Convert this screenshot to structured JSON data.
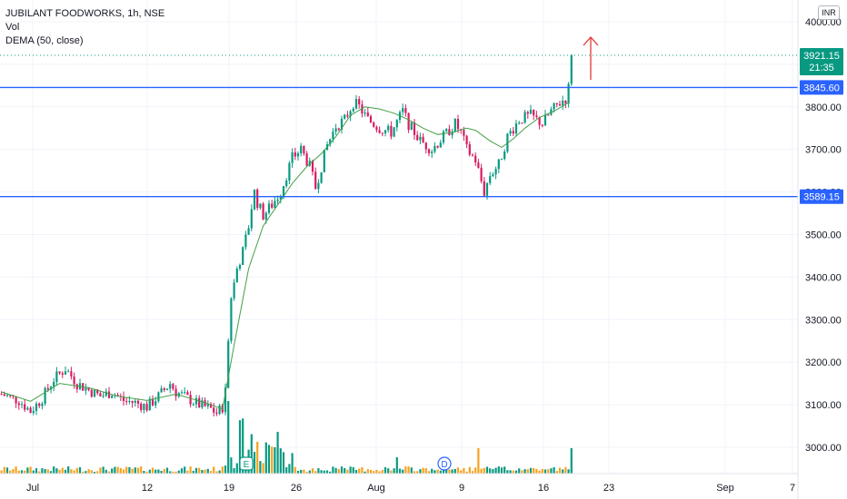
{
  "legend": {
    "symbol_line": "JUBILANT FOODWORKS, 1h, NSE",
    "vol_label": "Vol",
    "dema_label": "DEMA (50, close)"
  },
  "currency": "INR",
  "price_badge": {
    "price": "3921.15",
    "countdown": "21:35",
    "color": "#089981"
  },
  "colors": {
    "up": "#26a69a",
    "down": "#ef5350",
    "candle_up": "#089981",
    "candle_down": "#d81b60",
    "vol_up": "#089981",
    "vol_down": "#f7a21b",
    "dema": "#43a047",
    "hline": "#2962ff",
    "arrow": "#e53935"
  },
  "chart_data": {
    "type": "candlestick",
    "y_ticks": [
      "4000.00",
      "3900.00",
      "3800.00",
      "3700.00",
      "3600.00",
      "3500.00",
      "3400.00",
      "3300.00",
      "3200.00",
      "3100.00",
      "3000.00"
    ],
    "x_ticks": [
      "Jul",
      "12",
      "19",
      "26",
      "Aug",
      "9",
      "16",
      "23",
      "Sep",
      "7"
    ],
    "ylim": [
      2940,
      4060
    ],
    "horizontal_levels": [
      {
        "value": 3845.6,
        "label": "3845.60"
      },
      {
        "value": 3589.15,
        "label": "3589.15"
      }
    ],
    "last_price": 3921.15,
    "event_markers": [
      {
        "label": "E"
      },
      {
        "label": "D"
      }
    ],
    "price_path": [
      [
        0,
        3125
      ],
      [
        6,
        3110
      ],
      [
        10,
        3085
      ],
      [
        14,
        3115
      ],
      [
        18,
        3160
      ],
      [
        22,
        3185
      ],
      [
        26,
        3150
      ],
      [
        30,
        3135
      ],
      [
        34,
        3120
      ],
      [
        38,
        3130
      ],
      [
        42,
        3110
      ],
      [
        46,
        3105
      ],
      [
        50,
        3095
      ],
      [
        54,
        3120
      ],
      [
        58,
        3150
      ],
      [
        60,
        3130
      ],
      [
        64,
        3115
      ],
      [
        68,
        3100
      ],
      [
        72,
        3090
      ],
      [
        74,
        3080
      ],
      [
        76,
        3095
      ],
      [
        77,
        3140
      ],
      [
        78,
        3250
      ],
      [
        79,
        3350
      ],
      [
        81,
        3420
      ],
      [
        83,
        3460
      ],
      [
        85,
        3520
      ],
      [
        86,
        3565
      ],
      [
        87,
        3600
      ],
      [
        88,
        3575
      ],
      [
        90,
        3545
      ],
      [
        93,
        3570
      ],
      [
        96,
        3600
      ],
      [
        100,
        3680
      ],
      [
        103,
        3700
      ],
      [
        106,
        3660
      ],
      [
        108,
        3610
      ],
      [
        110,
        3660
      ],
      [
        112,
        3710
      ],
      [
        115,
        3755
      ],
      [
        118,
        3770
      ],
      [
        121,
        3810
      ],
      [
        123,
        3800
      ],
      [
        126,
        3770
      ],
      [
        130,
        3750
      ],
      [
        134,
        3740
      ],
      [
        138,
        3790
      ],
      [
        140,
        3760
      ],
      [
        144,
        3720
      ],
      [
        148,
        3700
      ],
      [
        152,
        3730
      ],
      [
        156,
        3760
      ],
      [
        158,
        3740
      ],
      [
        160,
        3700
      ],
      [
        163,
        3675
      ],
      [
        166,
        3600
      ],
      [
        168,
        3640
      ],
      [
        171,
        3665
      ],
      [
        174,
        3730
      ],
      [
        178,
        3770
      ],
      [
        182,
        3780
      ],
      [
        186,
        3760
      ],
      [
        189,
        3790
      ],
      [
        192,
        3810
      ],
      [
        194,
        3820
      ],
      [
        195,
        3845
      ],
      [
        196,
        3921
      ]
    ],
    "dema_path": [
      [
        0,
        3130
      ],
      [
        10,
        3108
      ],
      [
        20,
        3150
      ],
      [
        30,
        3140
      ],
      [
        40,
        3120
      ],
      [
        50,
        3110
      ],
      [
        60,
        3125
      ],
      [
        70,
        3105
      ],
      [
        76,
        3090
      ],
      [
        80,
        3240
      ],
      [
        85,
        3420
      ],
      [
        90,
        3520
      ],
      [
        95,
        3570
      ],
      [
        100,
        3620
      ],
      [
        105,
        3660
      ],
      [
        110,
        3690
      ],
      [
        115,
        3730
      ],
      [
        120,
        3780
      ],
      [
        125,
        3800
      ],
      [
        130,
        3795
      ],
      [
        135,
        3785
      ],
      [
        140,
        3770
      ],
      [
        145,
        3750
      ],
      [
        150,
        3735
      ],
      [
        155,
        3740
      ],
      [
        160,
        3750
      ],
      [
        163,
        3745
      ],
      [
        168,
        3720
      ],
      [
        172,
        3705
      ],
      [
        176,
        3725
      ],
      [
        180,
        3750
      ],
      [
        185,
        3775
      ],
      [
        190,
        3790
      ],
      [
        195,
        3810
      ]
    ],
    "x_span_bars": 200
  }
}
